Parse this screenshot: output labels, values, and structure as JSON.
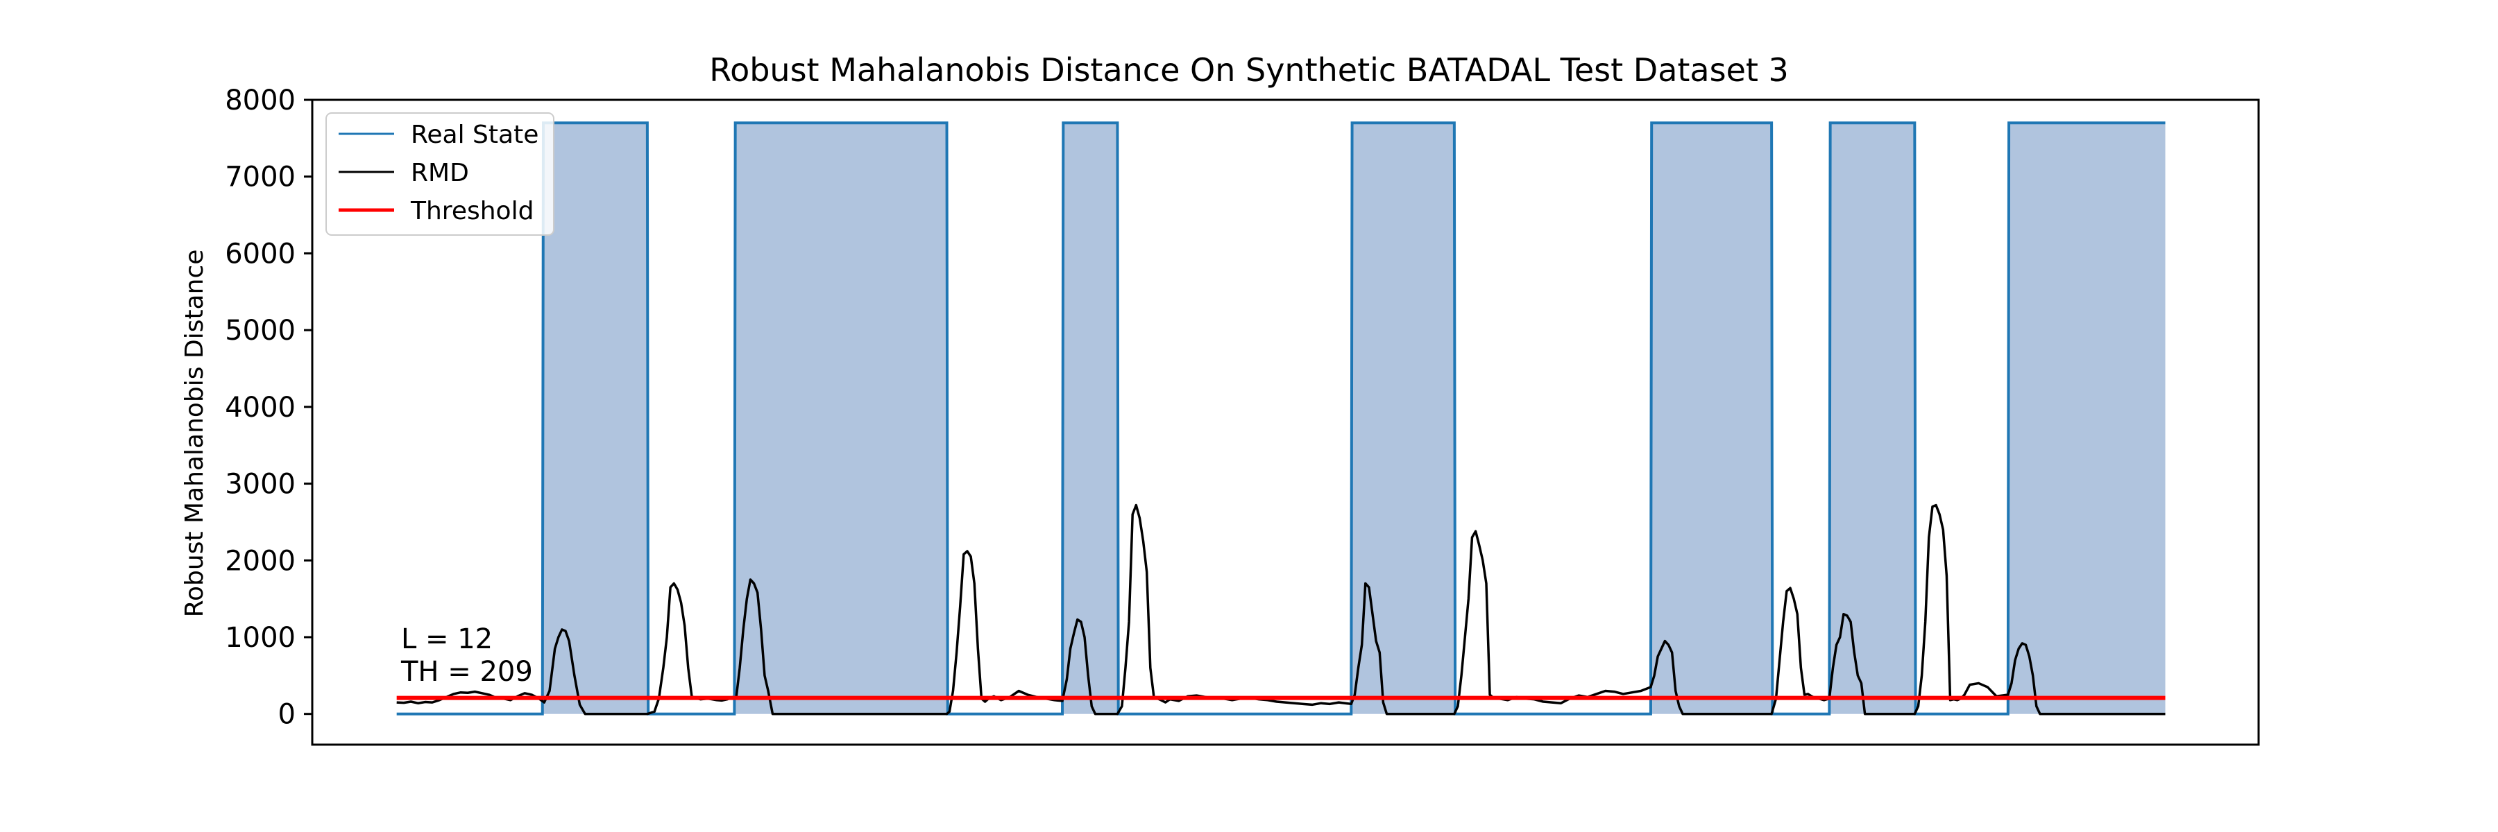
{
  "chart_data": {
    "type": "line",
    "title": "Robust Mahalanobis Distance On Synthetic BATADAL Test Dataset 3",
    "xlabel": "",
    "ylabel": "Robust Mahalanobis Distance",
    "xlim": [
      -95,
      2095
    ],
    "ylim": [
      -400,
      8000
    ],
    "yticks": [
      0,
      1000,
      2000,
      3000,
      4000,
      5000,
      6000,
      7000,
      8000
    ],
    "grid": false,
    "legend": {
      "placement": "top-left",
      "entries": [
        "Real State",
        "RMD",
        "Threshold"
      ]
    },
    "annotations": [
      "L = 12",
      "TH = 209"
    ],
    "colors": {
      "real_state": "#1f77b4",
      "fill": "#b0c4de",
      "rmd": "#000000",
      "threshold": "#ff0000"
    },
    "real_state": {
      "name": "Real State",
      "high_value": 7700,
      "low_value": 0,
      "attack_intervals": [
        [
          164,
          282
        ],
        [
          380,
          619
        ],
        [
          749,
          811
        ],
        [
          1074,
          1190
        ],
        [
          1411,
          1547
        ],
        [
          1612,
          1708
        ],
        [
          1813,
          1990
        ]
      ],
      "x_range": [
        0,
        1990
      ]
    },
    "rmd": {
      "name": "RMD",
      "x": [
        0,
        8,
        16,
        24,
        32,
        40,
        48,
        56,
        64,
        72,
        80,
        88,
        96,
        104,
        112,
        120,
        128,
        136,
        144,
        152,
        160,
        166,
        172,
        178,
        182,
        186,
        190,
        194,
        200,
        206,
        212,
        220,
        250,
        282,
        290,
        295,
        300,
        304,
        308,
        312,
        316,
        320,
        324,
        328,
        332,
        336,
        342,
        350,
        360,
        366,
        372,
        378,
        382,
        386,
        390,
        394,
        398,
        402,
        406,
        410,
        414,
        418,
        423,
        429,
        450,
        500,
        550,
        600,
        619,
        622,
        626,
        630,
        634,
        638,
        642,
        646,
        650,
        654,
        658,
        662,
        666,
        672,
        680,
        690,
        700,
        710,
        720,
        730,
        740,
        749,
        754,
        758,
        762,
        766,
        770,
        774,
        778,
        782,
        786,
        791,
        800,
        811,
        816,
        820,
        824,
        828,
        832,
        836,
        840,
        844,
        848,
        852,
        856,
        860,
        865,
        870,
        880,
        890,
        900,
        910,
        920,
        930,
        940,
        950,
        960,
        970,
        980,
        990,
        1000,
        1010,
        1020,
        1030,
        1040,
        1050,
        1060,
        1074,
        1078,
        1082,
        1086,
        1090,
        1094,
        1098,
        1102,
        1106,
        1110,
        1114,
        1120,
        1150,
        1190,
        1194,
        1198,
        1202,
        1206,
        1210,
        1214,
        1218,
        1222,
        1226,
        1230,
        1234,
        1240,
        1250,
        1260,
        1270,
        1280,
        1290,
        1300,
        1310,
        1320,
        1330,
        1340,
        1350,
        1360,
        1370,
        1380,
        1390,
        1400,
        1411,
        1415,
        1419,
        1423,
        1427,
        1431,
        1435,
        1439,
        1443,
        1447,
        1452,
        1480,
        1510,
        1547,
        1552,
        1556,
        1560,
        1564,
        1568,
        1572,
        1576,
        1580,
        1584,
        1588,
        1592,
        1596,
        1600,
        1606,
        1612,
        1616,
        1620,
        1624,
        1628,
        1632,
        1636,
        1640,
        1644,
        1648,
        1652,
        1656,
        1662,
        1690,
        1708,
        1712,
        1716,
        1720,
        1724,
        1728,
        1732,
        1736,
        1740,
        1744,
        1748,
        1752,
        1756,
        1760,
        1764,
        1770,
        1780,
        1790,
        1800,
        1813,
        1817,
        1821,
        1825,
        1829,
        1833,
        1837,
        1841,
        1845,
        1849,
        1853,
        1858,
        1890,
        1940,
        1990
      ],
      "y": [
        150,
        145,
        160,
        140,
        155,
        150,
        180,
        220,
        260,
        280,
        275,
        290,
        270,
        250,
        210,
        200,
        180,
        230,
        270,
        250,
        200,
        150,
        300,
        850,
        1000,
        1100,
        1080,
        950,
        500,
        120,
        0,
        0,
        0,
        0,
        30,
        200,
        600,
        1000,
        1650,
        1700,
        1620,
        1450,
        1150,
        600,
        230,
        210,
        190,
        200,
        180,
        175,
        190,
        220,
        210,
        600,
        1100,
        1500,
        1750,
        1700,
        1580,
        1100,
        500,
        300,
        0,
        0,
        0,
        0,
        0,
        0,
        0,
        30,
        300,
        800,
        1400,
        2080,
        2120,
        2050,
        1700,
        850,
        200,
        160,
        200,
        230,
        180,
        220,
        300,
        250,
        220,
        200,
        180,
        170,
        450,
        850,
        1050,
        1230,
        1200,
        1000,
        500,
        100,
        0,
        0,
        0,
        0,
        100,
        600,
        1200,
        2600,
        2720,
        2550,
        2250,
        1850,
        600,
        220,
        200,
        180,
        150,
        190,
        170,
        230,
        240,
        220,
        200,
        200,
        180,
        200,
        210,
        190,
        180,
        160,
        150,
        140,
        130,
        120,
        140,
        130,
        150,
        130,
        250,
        600,
        900,
        1700,
        1650,
        1300,
        950,
        800,
        150,
        0,
        0,
        0,
        0,
        100,
        500,
        1000,
        1500,
        2300,
        2380,
        2200,
        2000,
        1700,
        250,
        210,
        200,
        180,
        220,
        200,
        190,
        160,
        150,
        140,
        200,
        240,
        220,
        260,
        300,
        290,
        260,
        280,
        300,
        350,
        500,
        750,
        850,
        950,
        900,
        800,
        300,
        100,
        0,
        0,
        0,
        0,
        0,
        200,
        700,
        1200,
        1600,
        1640,
        1500,
        1300,
        600,
        250,
        260,
        230,
        210,
        200,
        180,
        200,
        600,
        900,
        1000,
        1300,
        1280,
        1200,
        800,
        500,
        400,
        0,
        0,
        0,
        0,
        0,
        100,
        500,
        1200,
        2300,
        2700,
        2720,
        2600,
        2400,
        1800,
        180,
        190,
        180,
        200,
        250,
        380,
        400,
        350,
        230,
        250,
        400,
        700,
        850,
        920,
        900,
        750,
        500,
        100,
        0,
        0,
        0,
        0,
        0,
        0
      ]
    },
    "threshold": {
      "name": "Threshold",
      "value": 209,
      "x_range": [
        0,
        1990
      ]
    }
  }
}
